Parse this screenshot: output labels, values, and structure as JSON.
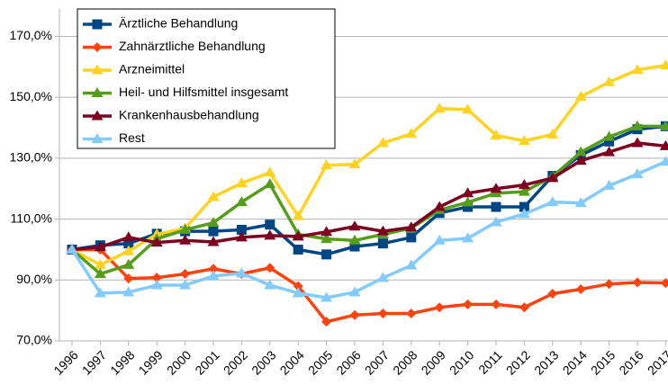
{
  "chart_data": {
    "type": "line",
    "categories": [
      "1996",
      "1997",
      "1998",
      "1999",
      "2000",
      "2001",
      "2002",
      "2003",
      "2004",
      "2005",
      "2006",
      "2007",
      "2008",
      "2009",
      "2010",
      "2011",
      "2012",
      "2013",
      "2014",
      "2015",
      "2016",
      "2017"
    ],
    "series": [
      {
        "name": "Ärztliche Behandlung",
        "color": "#004586",
        "marker": "square",
        "values": [
          100,
          101.4,
          102,
          105.2,
          106,
          106,
          106.5,
          108.2,
          100,
          98.4,
          101,
          102,
          104,
          112,
          114,
          114,
          114,
          124.2,
          131,
          135.5,
          139.5,
          140.5
        ]
      },
      {
        "name": "Zahnärztliche Behandlung",
        "color": "#ff420e",
        "marker": "diamond",
        "values": [
          100,
          100,
          90.5,
          90.8,
          92,
          93.7,
          92,
          94,
          88,
          76.3,
          78.5,
          79,
          79,
          81,
          82,
          82,
          81,
          85.5,
          87,
          88.7,
          89.2,
          89
        ]
      },
      {
        "name": "Arzneimittel",
        "color": "#ffd320",
        "marker": "triangle",
        "values": [
          100,
          95,
          99.5,
          105,
          107,
          117.3,
          121.8,
          125.3,
          111,
          127.7,
          128,
          135,
          138,
          146.3,
          146,
          137.5,
          135.7,
          137.8,
          150.2,
          155,
          159,
          160.5
        ]
      },
      {
        "name": "Heil- und Hilfsmittel insgesamt",
        "color": "#579d1c",
        "marker": "triangle",
        "values": [
          100,
          92,
          95,
          103.5,
          106.5,
          108.8,
          115.6,
          121.5,
          105,
          103.5,
          103,
          105,
          107,
          113,
          115.5,
          118.5,
          119,
          124,
          132,
          137,
          140.5,
          140.5
        ]
      },
      {
        "name": "Krankenhausbehandlung",
        "color": "#7e0021",
        "marker": "triangle",
        "values": [
          100,
          100.8,
          104,
          102.3,
          103,
          102.5,
          104,
          104.6,
          104.3,
          105.8,
          107.6,
          106,
          107.3,
          114,
          118.5,
          120,
          121.2,
          123.5,
          129.2,
          132,
          135,
          134
        ]
      },
      {
        "name": "Rest",
        "color": "#83caff",
        "marker": "triangle",
        "values": [
          100,
          85.7,
          86,
          88.3,
          88.3,
          91.3,
          92.2,
          88.3,
          85.7,
          84.2,
          86,
          90.7,
          94.8,
          103,
          103.7,
          109,
          111.7,
          115.6,
          115.3,
          121,
          124.8,
          128.9
        ]
      }
    ],
    "ylim": [
      70,
      179
    ],
    "yticks": [
      {
        "value": 70,
        "label": "70,0%"
      },
      {
        "value": 90,
        "label": "90,0%"
      },
      {
        "value": 110,
        "label": "110,0%"
      },
      {
        "value": 130,
        "label": "130,0%"
      },
      {
        "value": 150,
        "label": "150,0%"
      },
      {
        "value": 170,
        "label": "170,0%"
      }
    ],
    "grid": true,
    "legend": "top-left"
  }
}
